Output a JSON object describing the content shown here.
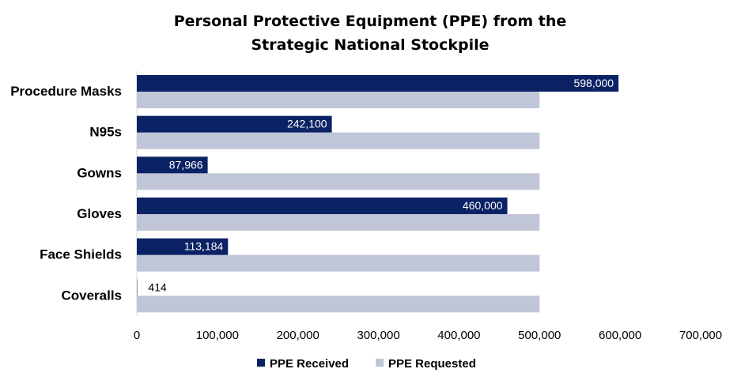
{
  "chart_data": {
    "type": "bar",
    "orientation": "horizontal",
    "title_lines": [
      "Personal Protective Equipment (PPE) from the",
      "Strategic National Stockpile"
    ],
    "categories": [
      "Procedure Masks",
      "N95s",
      "Gowns",
      "Gloves",
      "Face Shields",
      "Coveralls"
    ],
    "series": [
      {
        "name": "PPE Received",
        "color": "#0b2265",
        "values": [
          598000,
          242100,
          87966,
          460000,
          113184,
          414
        ],
        "data_labels": [
          "598,000",
          "242,100",
          "87,966",
          "460,000",
          "113,184",
          "414"
        ]
      },
      {
        "name": "PPE Requested",
        "color": "#c0c6d8",
        "values": [
          500000,
          500000,
          500000,
          500000,
          500000,
          500000
        ]
      }
    ],
    "xlim": [
      0,
      700000
    ],
    "x_ticks": [
      0,
      100000,
      200000,
      300000,
      400000,
      500000,
      600000,
      700000
    ],
    "x_tick_labels": [
      "0",
      "100,000",
      "200,000",
      "300,000",
      "400,000",
      "500,000",
      "600,000",
      "700,000"
    ],
    "grid": false,
    "legend_position": "bottom"
  }
}
